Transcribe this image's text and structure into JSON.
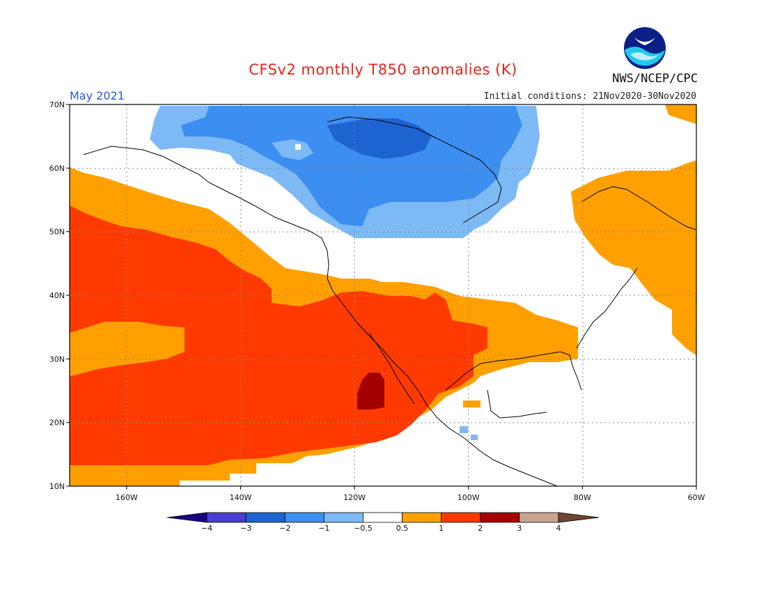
{
  "title": "CFSv2 monthly T850 anomalies (K)",
  "month": "May 2021",
  "initial_conditions": "Initial conditions: 21Nov2020-30Nov2020",
  "agency": "NWS/NCEP/CPC",
  "logo_text": "NOAA",
  "chart_data": {
    "type": "heatmap",
    "units": "K",
    "lon_range": [
      -170,
      -60
    ],
    "lat_range": [
      10,
      70
    ],
    "lat_ticks": [
      "10N",
      "20N",
      "30N",
      "40N",
      "50N",
      "60N",
      "70N"
    ],
    "lon_ticks": [
      "160W",
      "140W",
      "120W",
      "100W",
      "80W",
      "60W"
    ],
    "legend": {
      "levels": [
        "-4",
        "-3",
        "-2",
        "-1",
        "-0.5",
        "0.5",
        "1",
        "2",
        "3",
        "4"
      ],
      "colors": [
        "#1c0088",
        "#4a3cd0",
        "#1e63d2",
        "#3c8ef0",
        "#7db9f5",
        "#ffffff",
        "#ffa000",
        "#ff3a00",
        "#a50000",
        "#cca393",
        "#6e4534"
      ]
    },
    "anomaly_regions": [
      {
        "category": "0.5 to 1",
        "color": "#ffa000",
        "description": "Orange belt along northern Pacific rim, Gulf coast, eastern Canada"
      },
      {
        "category": "1 to 2",
        "color": "#ff3a00",
        "description": "Eastern Pacific and southwestern United States"
      },
      {
        "category": "2 to 3",
        "color": "#a50000",
        "description": "Baja California Sur"
      },
      {
        "category": "-0.5 to -1",
        "color": "#7db9f5",
        "description": "Northern Canada fringe"
      },
      {
        "category": "-1 to -2",
        "color": "#3c8ef0",
        "description": "Northwest Territories and Nunavut"
      },
      {
        "category": "-2 to -3",
        "color": "#1e63d2",
        "description": "Central Canadian Arctic"
      }
    ]
  }
}
